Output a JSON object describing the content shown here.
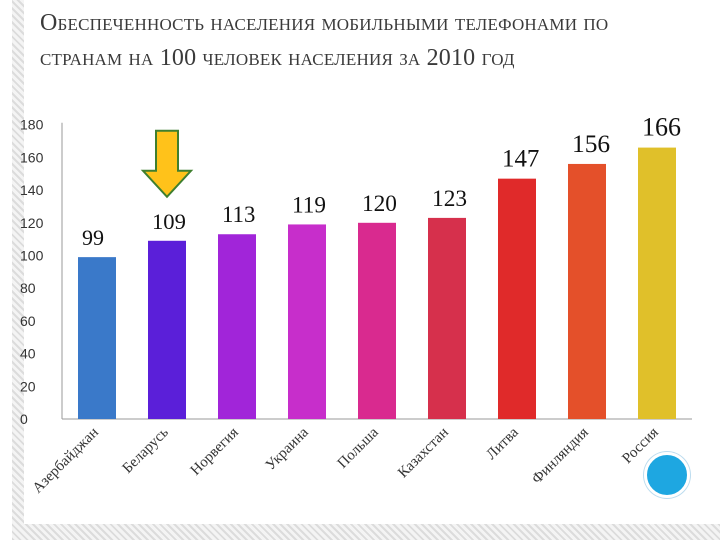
{
  "slide": {
    "title": "Обеспеченность населения мобильными телефонами по странам на 100 человек населения за 2010 год"
  },
  "chart_data": {
    "type": "bar",
    "categories": [
      "Азербайджан",
      "Беларусь",
      "Норвегия",
      "Украина",
      "Польша",
      "Казахстан",
      "Литва",
      "Финляндия",
      "Россия"
    ],
    "values": [
      99,
      109,
      113,
      119,
      120,
      123,
      147,
      156,
      166
    ],
    "ylim": [
      0,
      180
    ],
    "yticks": [
      0,
      20,
      40,
      60,
      80,
      100,
      120,
      140,
      160,
      180
    ],
    "grid": false,
    "legend": "none",
    "colors": [
      "#3a79c9",
      "#5b1fd9",
      "#a125d9",
      "#c72ecb",
      "#d92a8f",
      "#d6304c",
      "#e02a2a",
      "#e4502a",
      "#e0c02a"
    ],
    "highlight": {
      "category": "Беларусь",
      "marker": "down-arrow",
      "color": "#ffc21a"
    }
  }
}
